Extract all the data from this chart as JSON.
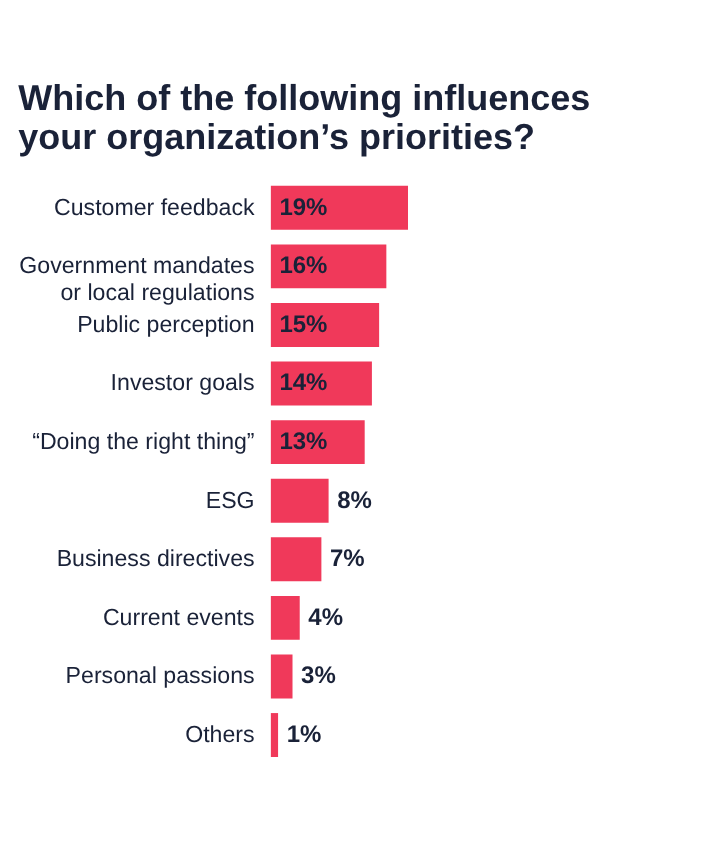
{
  "chart_data": {
    "type": "bar",
    "orientation": "horizontal",
    "title": "Which of the following influences\nyour organization’s priorities?",
    "categories": [
      "Customer feedback",
      "Government mandates\nor local regulations",
      "Public perception",
      "Investor goals",
      "“Doing the right thing”",
      "ESG",
      "Business directives",
      "Current events",
      "Personal passions",
      "Others"
    ],
    "values": [
      19,
      16,
      15,
      14,
      13,
      8,
      7,
      4,
      3,
      1
    ],
    "value_labels": [
      "19%",
      "16%",
      "15%",
      "14%",
      "13%",
      "8%",
      "7%",
      "4%",
      "3%",
      "1%"
    ],
    "color": "#f0395a",
    "grid": false
  }
}
